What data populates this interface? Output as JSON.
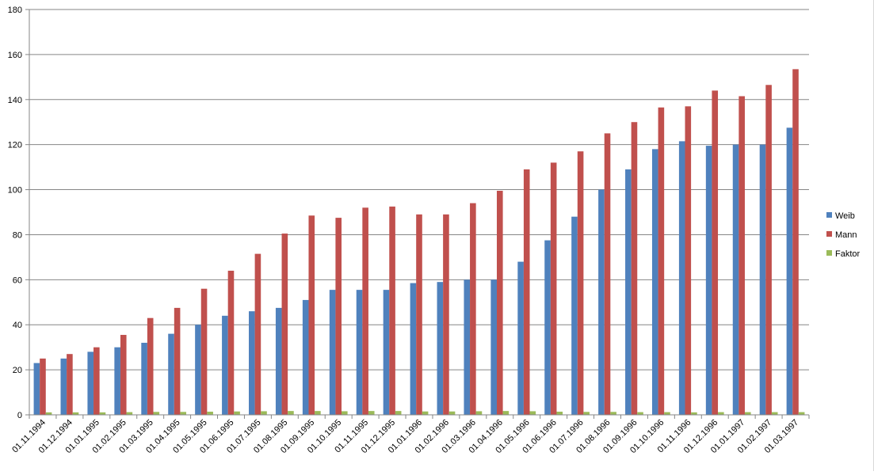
{
  "chart_data": {
    "type": "bar",
    "title": "",
    "xlabel": "",
    "ylabel": "",
    "ylim": [
      0,
      180
    ],
    "yticks": [
      0,
      20,
      40,
      60,
      80,
      100,
      120,
      140,
      160,
      180
    ],
    "grid": true,
    "legend_position": "right",
    "categories": [
      "01.11.1994",
      "01.12.1994",
      "01.01.1995",
      "01.02.1995",
      "01.03.1995",
      "01.04.1995",
      "01.05.1995",
      "01.06.1995",
      "01.07.1995",
      "01.08.1995",
      "01.09.1995",
      "01.10.1995",
      "01.11.1995",
      "01.12.1995",
      "01.01.1996",
      "01.02.1996",
      "01.03.1996",
      "01.04.1996",
      "01.05.1996",
      "01.06.1996",
      "01.07.1996",
      "01.08.1996",
      "01.09.1996",
      "01.10.1996",
      "01.11.1996",
      "01.12.1996",
      "01.01.1997",
      "01.02.1997",
      "01.03.1997"
    ],
    "series": [
      {
        "name": "Weib",
        "color": "#4f81bd",
        "values": [
          23,
          25,
          28,
          30,
          32,
          36,
          40,
          44,
          46,
          47.5,
          51,
          55.5,
          55.5,
          55.5,
          58.5,
          59,
          60,
          60,
          68,
          77.5,
          88,
          100,
          109,
          118,
          121.5,
          119.5,
          120,
          120,
          127.5
        ]
      },
      {
        "name": "Mann",
        "color": "#c0504d",
        "values": [
          25,
          27,
          30,
          35.5,
          43,
          47.5,
          56,
          64,
          71.5,
          80.5,
          88.5,
          87.5,
          92,
          92.5,
          89,
          89,
          94,
          99.5,
          109,
          112,
          117,
          125,
          130,
          136.5,
          137,
          144,
          141.5,
          146.5,
          153.5
        ]
      },
      {
        "name": "Faktor",
        "color": "#9bbb59",
        "values": [
          1.1,
          1.1,
          1.1,
          1.2,
          1.3,
          1.3,
          1.4,
          1.5,
          1.6,
          1.7,
          1.7,
          1.6,
          1.7,
          1.7,
          1.5,
          1.5,
          1.6,
          1.7,
          1.6,
          1.4,
          1.3,
          1.3,
          1.2,
          1.2,
          1.1,
          1.2,
          1.2,
          1.2,
          1.2
        ]
      }
    ]
  }
}
